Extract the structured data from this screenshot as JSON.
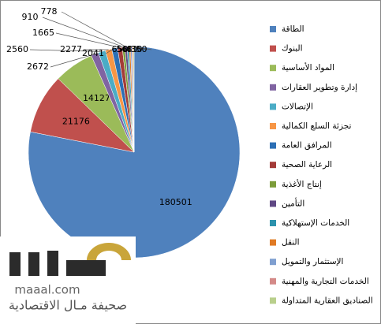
{
  "chart_data": {
    "type": "pie",
    "categories": [
      "الطاقة",
      "البنوك",
      "المواد الأساسية",
      "إدارة وتطوير العقارات",
      "الإتصالات",
      "تجزئة السلع الكمالية",
      "المرافق العامة",
      "الرعاية الصحية",
      "إنتاج الأغذية",
      "التأمين",
      "الخدمات الإستهلاكية",
      "النقل",
      "الإستثمار والتمويل",
      "الخدمات التجارية والمهنية",
      "الصناديق العقارية المتداولة"
    ],
    "values": [
      180501,
      21176,
      14127,
      2672,
      2560,
      2277,
      2041,
      1665,
      910,
      778,
      650,
      560,
      480,
      410,
      350
    ],
    "colors": [
      "#4f81bd",
      "#c0504d",
      "#9bbb59",
      "#8064a2",
      "#4bacc6",
      "#f79646",
      "#2c6fb5",
      "#a33b38",
      "#7c9c3a",
      "#5f4884",
      "#2c92ad",
      "#e07a24",
      "#7f9fd0",
      "#d48a88",
      "#b9cf8c"
    ],
    "legend": "right"
  },
  "watermark": {
    "domain": "maaal.com",
    "name": "صحيفة مـال الاقتصادية"
  }
}
